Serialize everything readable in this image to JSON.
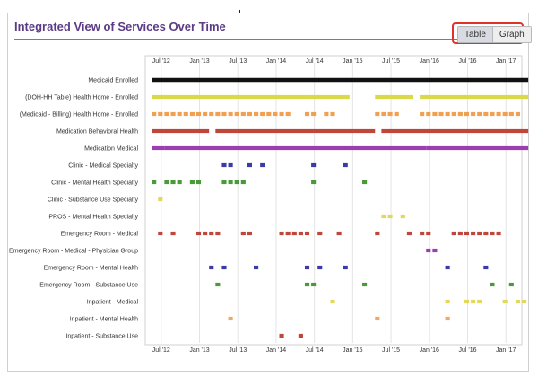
{
  "header": {
    "title": "Integrated View of Services Over Time",
    "toggle": {
      "table_label": "Table",
      "graph_label": "Graph",
      "selected": "Graph"
    }
  },
  "colors": {
    "black": "#111111",
    "yellow": "#d9d94a",
    "orange": "#f0a050",
    "red": "#c0453b",
    "purple": "#9b3fb0",
    "blue": "#3a3aa8",
    "green": "#4a9a3a",
    "ltyellow": "#e2d85a",
    "peach": "#f2a862",
    "grid": "#e4e4e4",
    "title": "#5b3b86"
  },
  "chart_data": {
    "type": "timeline",
    "title": "Integrated View of Services Over Time",
    "x_range": [
      "2012-05-01",
      "2017-04-01"
    ],
    "x_ticks": [
      "Jul '12",
      "Jan '13",
      "Jul '13",
      "Jan '14",
      "Jul '14",
      "Jan '15",
      "Jul '15",
      "Jan '16",
      "Jul '16",
      "Jan '17"
    ],
    "grid": true,
    "rows": [
      {
        "label": "Medicaid Enrolled",
        "color": "black",
        "segments": [
          [
            "2012-06",
            "2017-04"
          ]
        ]
      },
      {
        "label": "(DOH-HH Table) Health Home - Enrolled",
        "color": "yellow",
        "segments": [
          [
            "2012-06",
            "2014-05"
          ],
          [
            "2014-06",
            "2014-12"
          ],
          [
            "2015-05",
            "2015-10"
          ],
          [
            "2015-12",
            "2017-04"
          ]
        ]
      },
      {
        "label": "(Medicaid - Billing) Health Home - Enrolled",
        "color": "orange",
        "months": [
          "2012-06",
          "2012-07",
          "2012-08",
          "2012-09",
          "2012-10",
          "2012-11",
          "2012-12",
          "2013-01",
          "2013-02",
          "2013-03",
          "2013-04",
          "2013-05",
          "2013-06",
          "2013-07",
          "2013-08",
          "2013-09",
          "2013-10",
          "2013-11",
          "2013-12",
          "2014-01",
          "2014-02",
          "2014-03",
          "2014-06",
          "2014-07",
          "2014-09",
          "2014-10",
          "2015-05",
          "2015-06",
          "2015-07",
          "2015-08",
          "2015-12",
          "2016-01",
          "2016-02",
          "2016-03",
          "2016-04",
          "2016-05",
          "2016-06",
          "2016-07",
          "2016-08",
          "2016-09",
          "2016-10",
          "2016-11",
          "2016-12",
          "2017-01",
          "2017-02",
          "2017-03"
        ]
      },
      {
        "label": "Medication Behavioral Health",
        "color": "red",
        "segments": [
          [
            "2012-06",
            "2013-02"
          ],
          [
            "2013-04",
            "2015-04"
          ],
          [
            "2015-06",
            "2017-04"
          ]
        ]
      },
      {
        "label": "Medication Medical",
        "color": "purple",
        "segments": [
          [
            "2012-06",
            "2012-07"
          ],
          [
            "2012-08",
            "2015-12"
          ],
          [
            "2016-01",
            "2017-04"
          ]
        ]
      },
      {
        "label": "Clinic - Medical Specialty",
        "color": "blue",
        "months": [
          "2013-05",
          "2013-06",
          "2013-09",
          "2013-11",
          "2014-07",
          "2014-12"
        ]
      },
      {
        "label": "Clinic - Mental Health Specialty",
        "color": "green",
        "months": [
          "2012-06",
          "2012-08",
          "2012-09",
          "2012-10",
          "2012-12",
          "2013-01",
          "2013-05",
          "2013-06",
          "2013-07",
          "2013-08",
          "2014-07",
          "2015-03"
        ]
      },
      {
        "label": "Clinic - Substance Use Specialty",
        "color": "ltyellow",
        "months": [
          "2012-07"
        ]
      },
      {
        "label": "PROS - Mental Health Specialty",
        "color": "ltyellow",
        "months": [
          "2015-06",
          "2015-07",
          "2015-09"
        ]
      },
      {
        "label": "Emergency Room - Medical",
        "color": "red",
        "months": [
          "2012-07",
          "2012-09",
          "2013-01",
          "2013-02",
          "2013-03",
          "2013-04",
          "2013-08",
          "2013-09",
          "2014-02",
          "2014-03",
          "2014-04",
          "2014-05",
          "2014-06",
          "2014-08",
          "2014-11",
          "2015-05",
          "2015-10",
          "2015-12",
          "2016-01",
          "2016-05",
          "2016-06",
          "2016-07",
          "2016-08",
          "2016-09",
          "2016-10",
          "2016-11",
          "2016-12"
        ]
      },
      {
        "label": "Emergency Room - Medical - Physician Group",
        "color": "purple",
        "months": [
          "2016-01",
          "2016-02"
        ]
      },
      {
        "label": "Emergency Room - Mental Health",
        "color": "blue",
        "months": [
          "2013-03",
          "2013-05",
          "2013-10",
          "2014-06",
          "2014-08",
          "2014-12",
          "2016-04",
          "2016-10"
        ]
      },
      {
        "label": "Emergency Room - Substance Use",
        "color": "green",
        "months": [
          "2013-04",
          "2014-06",
          "2014-07",
          "2015-03",
          "2016-11",
          "2017-02"
        ]
      },
      {
        "label": "Inpatient - Medical",
        "color": "ltyellow",
        "months": [
          "2014-10",
          "2016-04",
          "2016-07",
          "2016-08",
          "2016-09",
          "2017-01",
          "2017-03",
          "2017-04"
        ]
      },
      {
        "label": "Inpatient - Mental Health",
        "color": "peach",
        "months": [
          "2013-06",
          "2015-05",
          "2016-04"
        ]
      },
      {
        "label": "Inpatient - Substance Use",
        "color": "red",
        "months": [
          "2014-02",
          "2014-05"
        ]
      }
    ]
  }
}
